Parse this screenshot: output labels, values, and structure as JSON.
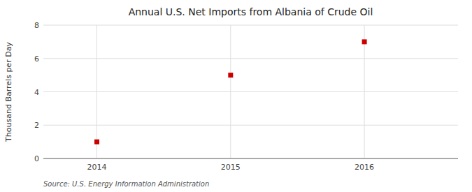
{
  "chart_data": {
    "type": "scatter",
    "title": "Annual U.S. Net Imports from Albania of Crude Oil",
    "ylabel": "Thousand Barrels per Day",
    "source": "Source: U.S. Energy Information Administration",
    "x": [
      2014,
      2015,
      2016
    ],
    "values": [
      1,
      5,
      7
    ],
    "color": "#cc0000",
    "marker": "square",
    "xlim": [
      2013.6,
      2016.7
    ],
    "ylim": [
      0,
      8
    ],
    "xticks": [
      2014,
      2015,
      2016
    ],
    "yticks": [
      0,
      2,
      4,
      6,
      8
    ],
    "grid": true
  }
}
